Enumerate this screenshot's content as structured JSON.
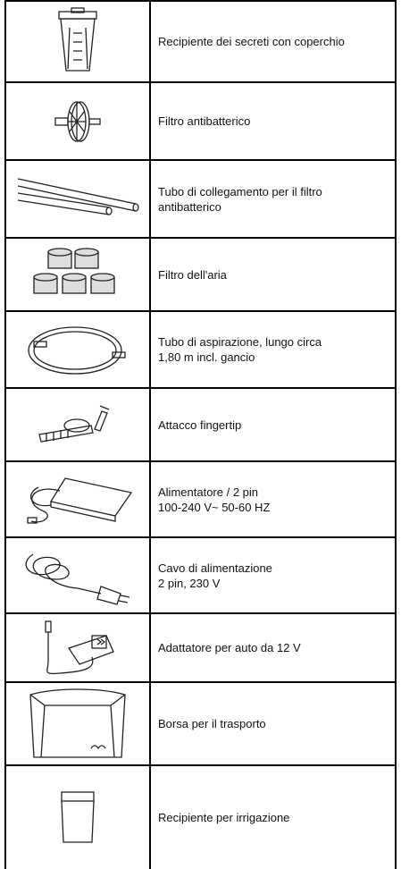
{
  "rows": [
    {
      "lines": [
        "Recipiente dei secreti con coperchio"
      ]
    },
    {
      "lines": [
        "Filtro antibatterico"
      ]
    },
    {
      "lines": [
        "Tubo di collegamento per il filtro",
        "antibatterico"
      ]
    },
    {
      "lines": [
        "Filtro dell'aria"
      ]
    },
    {
      "lines": [
        "Tubo di aspirazione, lungo circa",
        "1,80 m incl. gancio"
      ]
    },
    {
      "lines": [
        "Attacco fingertip"
      ]
    },
    {
      "lines": [
        "Alimentatore / 2 pin",
        "100-240 V~ 50-60 HZ"
      ]
    },
    {
      "lines": [
        "Cavo di alimentazione",
        "2 pin, 230 V"
      ]
    },
    {
      "lines": [
        "Adattatore per auto da 12 V"
      ]
    },
    {
      "lines": [
        "Borsa per il trasporto"
      ]
    },
    {
      "lines": [
        "Recipiente per irrigazione"
      ]
    }
  ]
}
